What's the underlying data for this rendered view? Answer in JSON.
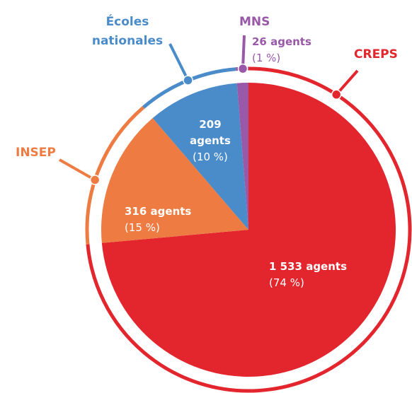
{
  "chart_data": {
    "type": "pie",
    "categories": [
      "CREPS",
      "INSEP",
      "Écoles nationales",
      "MNS"
    ],
    "values": [
      1533,
      316,
      209,
      26
    ],
    "value_labels": [
      "1 533 agents",
      "316 agents",
      "209 agents",
      "26 agents"
    ],
    "percentages": [
      74,
      15,
      10,
      1
    ],
    "percent_labels": [
      "(74 %)",
      "(15 %)",
      "(10 %)",
      "(1 %)"
    ],
    "colors": [
      "#e3262d",
      "#ee7c42",
      "#4a8bca",
      "#9a58a9"
    ]
  }
}
